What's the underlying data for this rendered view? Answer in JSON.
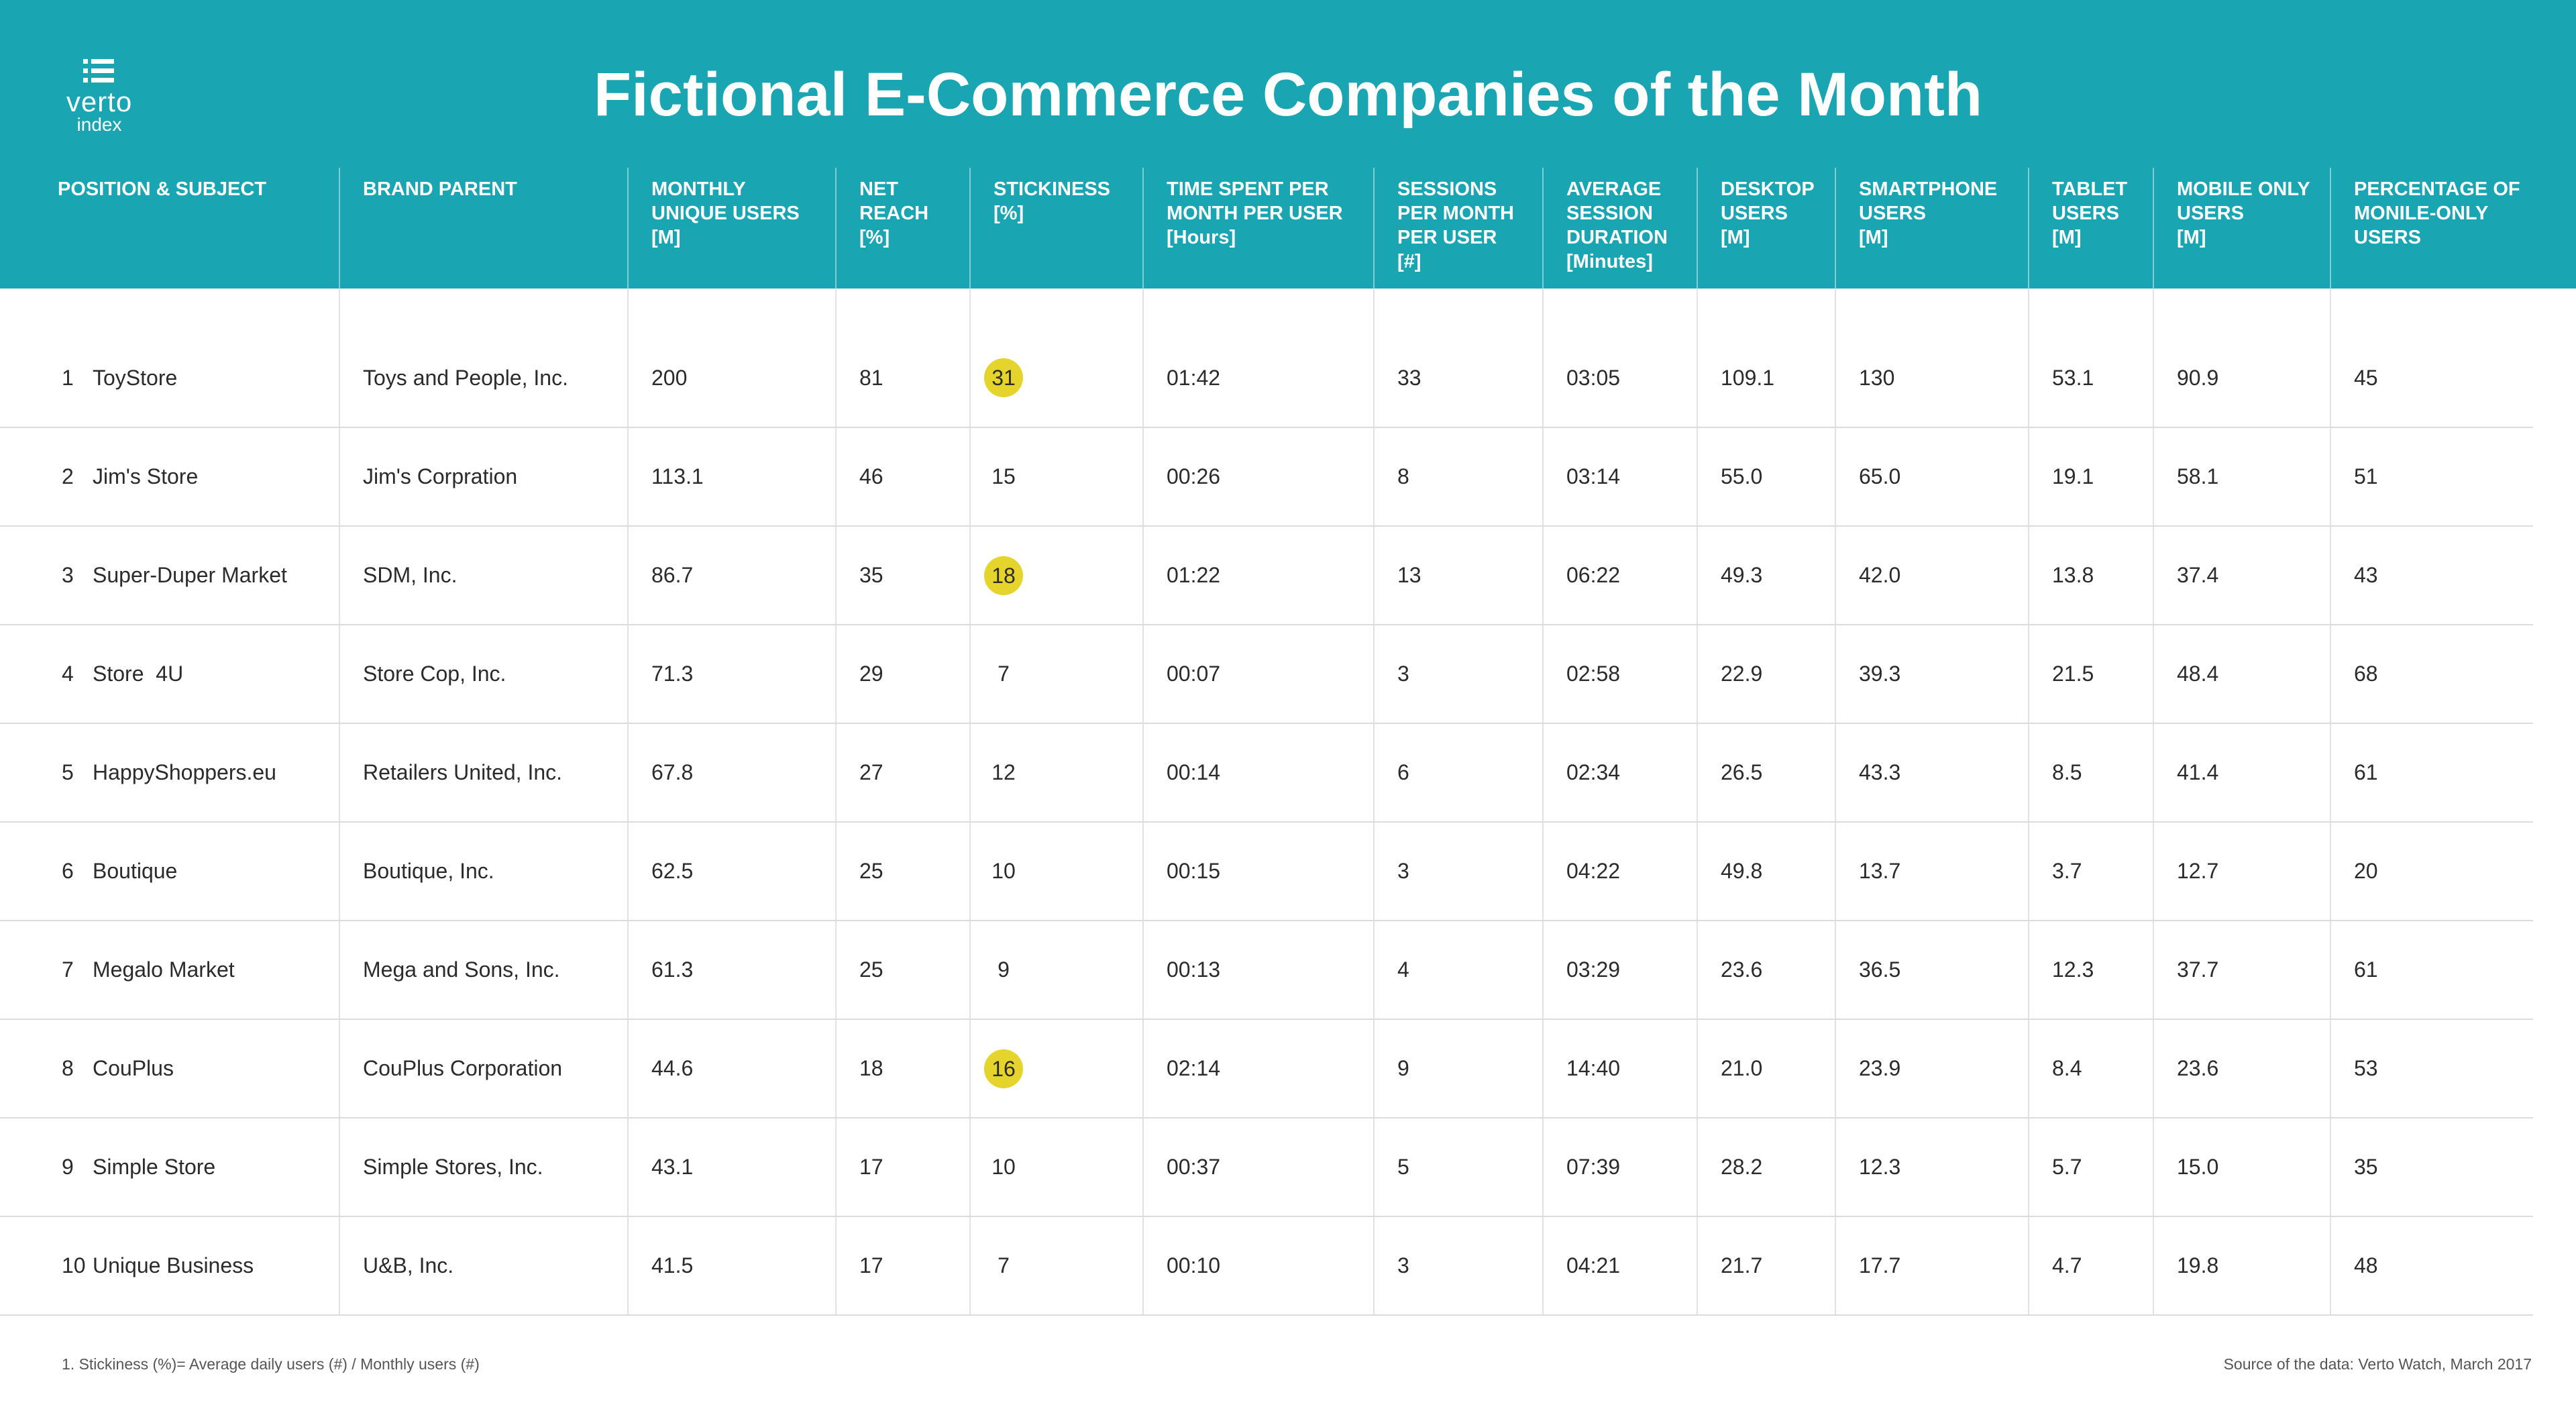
{
  "logo": {
    "word": "verto",
    "sub": "index",
    "icon": "list-icon"
  },
  "title": "Fictional E-Commerce Companies of the Month",
  "colors": {
    "header_bg": "#1aa5b3",
    "highlight": "#e5d42c"
  },
  "columns": [
    [
      "POSITION & SUBJECT"
    ],
    [
      "BRAND PARENT"
    ],
    [
      "MONTHLY",
      "UNIQUE USERS",
      "[M]"
    ],
    [
      "NET",
      "REACH",
      "[%]"
    ],
    [
      "STICKINESS",
      "[%]"
    ],
    [
      "TIME SPENT PER",
      "MONTH PER USER",
      "[Hours]"
    ],
    [
      "SESSIONS",
      "PER MONTH",
      "PER USER",
      "[#]"
    ],
    [
      "AVERAGE",
      "SESSION",
      "DURATION",
      "[Minutes]"
    ],
    [
      "DESKTOP",
      "USERS",
      "[M]"
    ],
    [
      "SMARTPHONE",
      "USERS",
      "[M]"
    ],
    [
      "TABLET",
      "USERS",
      "[M]"
    ],
    [
      "MOBILE ONLY",
      "USERS",
      "[M]"
    ],
    [
      "PERCENTAGE OF",
      "MONILE-ONLY",
      "USERS"
    ]
  ],
  "rows": [
    {
      "rank": "1",
      "subject": "ToyStore",
      "parent": "Toys and People, Inc.",
      "unique": "200",
      "reach": "81",
      "stick": "31",
      "stick_hl": true,
      "time": "01:42",
      "sessions": "33",
      "duration": "03:05",
      "desktop": "109.1",
      "smartphone": "130",
      "tablet": "53.1",
      "mobile": "90.9",
      "pct": "45"
    },
    {
      "rank": "2",
      "subject": "Jim's Store",
      "parent": "Jim's Corpration",
      "unique": "113.1",
      "reach": "46",
      "stick": "15",
      "stick_hl": false,
      "time": "00:26",
      "sessions": "8",
      "duration": "03:14",
      "desktop": "55.0",
      "smartphone": "65.0",
      "tablet": "19.1",
      "mobile": "58.1",
      "pct": "51"
    },
    {
      "rank": "3",
      "subject": "Super-Duper Market",
      "parent": "SDM, Inc.",
      "unique": "86.7",
      "reach": "35",
      "stick": "18",
      "stick_hl": true,
      "time": "01:22",
      "sessions": "13",
      "duration": "06:22",
      "desktop": "49.3",
      "smartphone": "42.0",
      "tablet": "13.8",
      "mobile": "37.4",
      "pct": "43"
    },
    {
      "rank": "4",
      "subject": "Store  4U",
      "parent": "Store Cop, Inc.",
      "unique": "71.3",
      "reach": "29",
      "stick": "7",
      "stick_hl": false,
      "time": "00:07",
      "sessions": "3",
      "duration": "02:58",
      "desktop": "22.9",
      "smartphone": "39.3",
      "tablet": "21.5",
      "mobile": "48.4",
      "pct": "68"
    },
    {
      "rank": "5",
      "subject": "HappyShoppers.eu",
      "parent": "Retailers United, Inc.",
      "unique": "67.8",
      "reach": "27",
      "stick": "12",
      "stick_hl": false,
      "time": "00:14",
      "sessions": "6",
      "duration": "02:34",
      "desktop": "26.5",
      "smartphone": "43.3",
      "tablet": "8.5",
      "mobile": "41.4",
      "pct": "61"
    },
    {
      "rank": "6",
      "subject": "Boutique",
      "parent": "Boutique, Inc.",
      "unique": "62.5",
      "reach": "25",
      "stick": "10",
      "stick_hl": false,
      "time": "00:15",
      "sessions": "3",
      "duration": "04:22",
      "desktop": "49.8",
      "smartphone": "13.7",
      "tablet": "3.7",
      "mobile": "12.7",
      "pct": "20"
    },
    {
      "rank": "7",
      "subject": "Megalo Market",
      "parent": "Mega and Sons, Inc.",
      "unique": "61.3",
      "reach": "25",
      "stick": "9",
      "stick_hl": false,
      "time": "00:13",
      "sessions": "4",
      "duration": "03:29",
      "desktop": "23.6",
      "smartphone": "36.5",
      "tablet": "12.3",
      "mobile": "37.7",
      "pct": "61"
    },
    {
      "rank": "8",
      "subject": "CouPlus",
      "parent": "CouPlus Corporation",
      "unique": "44.6",
      "reach": "18",
      "stick": "16",
      "stick_hl": true,
      "time": "02:14",
      "sessions": "9",
      "duration": "14:40",
      "desktop": "21.0",
      "smartphone": "23.9",
      "tablet": "8.4",
      "mobile": "23.6",
      "pct": "53"
    },
    {
      "rank": "9",
      "subject": "Simple Store",
      "parent": "Simple Stores, Inc.",
      "unique": "43.1",
      "reach": "17",
      "stick": "10",
      "stick_hl": false,
      "time": "00:37",
      "sessions": "5",
      "duration": "07:39",
      "desktop": "28.2",
      "smartphone": "12.3",
      "tablet": "5.7",
      "mobile": "15.0",
      "pct": "35"
    },
    {
      "rank": "10",
      "subject": "Unique Business",
      "parent": "U&B, Inc.",
      "unique": "41.5",
      "reach": "17",
      "stick": "7",
      "stick_hl": false,
      "time": "00:10",
      "sessions": "3",
      "duration": "04:21",
      "desktop": "21.7",
      "smartphone": "17.7",
      "tablet": "4.7",
      "mobile": "19.8",
      "pct": "48"
    }
  ],
  "footnote": "1. Stickiness (%)= Average daily users (#) / Monthly users (#)",
  "source": "Source of the data: Verto Watch, March 2017"
}
